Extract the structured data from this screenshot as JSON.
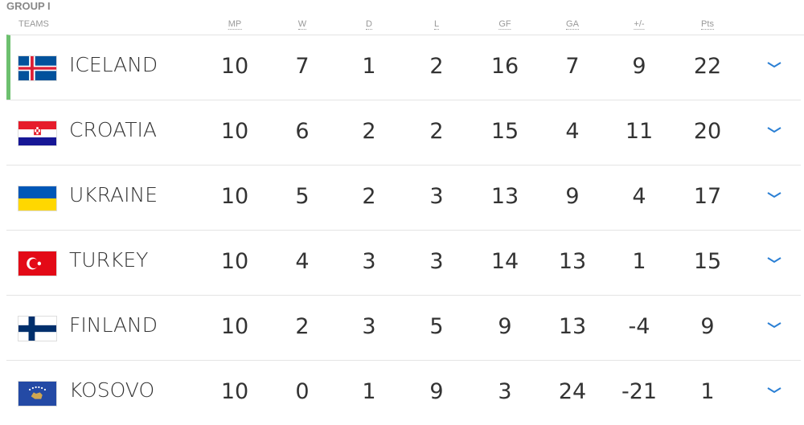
{
  "group_title": "GROUP I",
  "columns": [
    "TEAMS",
    "MP",
    "W",
    "D",
    "L",
    "GF",
    "GA",
    "+/-",
    "Pts"
  ],
  "accent_qualified": "#6dc06f",
  "chevron_color": "#2a7fd4",
  "teams": [
    {
      "name": "ICELAND",
      "flag": "iceland-flag",
      "stats": [
        "10",
        "7",
        "1",
        "2",
        "16",
        "7",
        "9",
        "22"
      ]
    },
    {
      "name": "CROATIA",
      "flag": "croatia-flag",
      "stats": [
        "10",
        "6",
        "2",
        "2",
        "15",
        "4",
        "11",
        "20"
      ]
    },
    {
      "name": "UKRAINE",
      "flag": "ukraine-flag",
      "stats": [
        "10",
        "5",
        "2",
        "3",
        "13",
        "9",
        "4",
        "17"
      ]
    },
    {
      "name": "TURKEY",
      "flag": "turkey-flag",
      "stats": [
        "10",
        "4",
        "3",
        "3",
        "14",
        "13",
        "1",
        "15"
      ]
    },
    {
      "name": "FINLAND",
      "flag": "finland-flag",
      "stats": [
        "10",
        "2",
        "3",
        "5",
        "9",
        "13",
        "-4",
        "9"
      ]
    },
    {
      "name": "KOSOVO",
      "flag": "kosovo-flag",
      "stats": [
        "10",
        "0",
        "1",
        "9",
        "3",
        "24",
        "-21",
        "1"
      ]
    }
  ]
}
